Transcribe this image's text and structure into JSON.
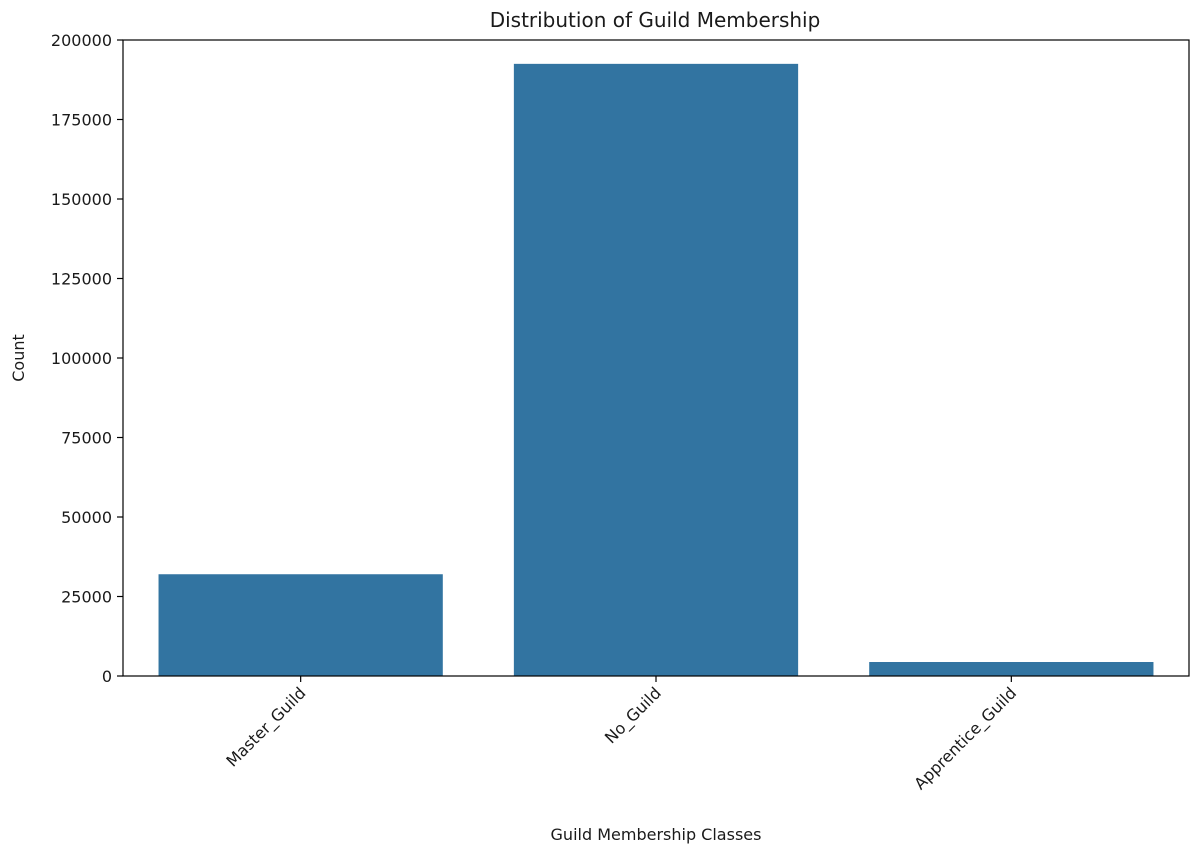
{
  "chart_data": {
    "type": "bar",
    "title": "Distribution of Guild Membership",
    "xlabel": "Guild Membership Classes",
    "ylabel": "Count",
    "categories": [
      "Master_Guild",
      "No_Guild",
      "Apprentice_Guild"
    ],
    "values": [
      32000,
      192500,
      4400
    ],
    "ylim": [
      0,
      200000
    ],
    "yticks": [
      "0",
      "25000",
      "50000",
      "75000",
      "100000",
      "125000",
      "150000",
      "175000",
      "200000"
    ],
    "grid": false,
    "legend": "none",
    "bar_color": "#3274a1",
    "xtick_rotation": -45
  }
}
